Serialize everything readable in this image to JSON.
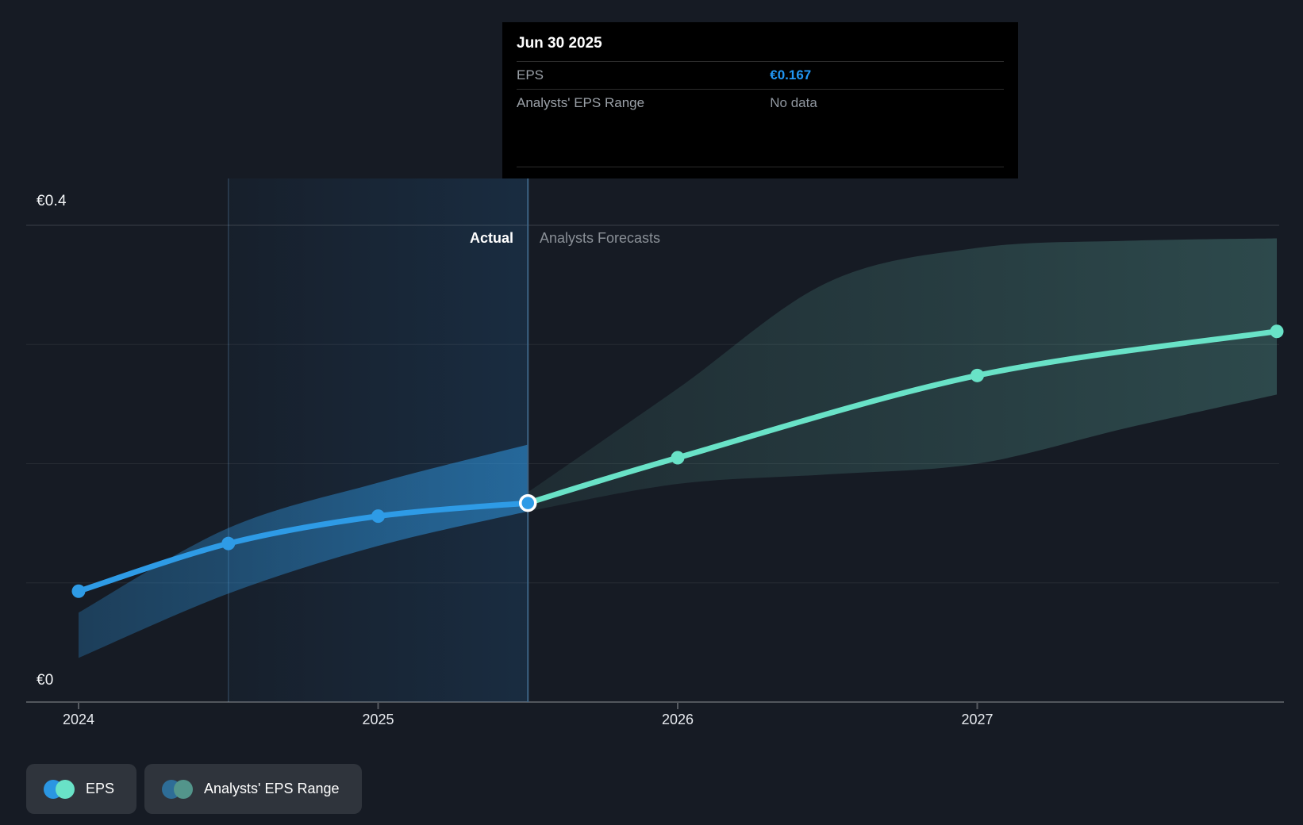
{
  "page": {
    "background": "#161b24"
  },
  "tooltip": {
    "title": "Jun 30 2025",
    "rows": [
      {
        "label": "EPS",
        "value": "€0.167",
        "value_color": "#2196f3"
      },
      {
        "label": "Analysts' EPS Range",
        "value": "No data",
        "value_color": "#9097a0"
      }
    ]
  },
  "annotations": {
    "actual_label": "Actual",
    "forecast_label": "Analysts Forecasts"
  },
  "axes": {
    "y_top_label": "€0.4",
    "y_bottom_label": "€0",
    "x_tick_labels": [
      "2024",
      "2025",
      "2026",
      "2027"
    ]
  },
  "legend": {
    "items": [
      {
        "id": "eps",
        "label": "EPS",
        "colors": [
          "#2b96e2",
          "#69e2c7"
        ]
      },
      {
        "id": "analysts-eps-range",
        "label": "Analysts' EPS Range",
        "colors": [
          "#2e6d97",
          "#53958b"
        ]
      }
    ]
  },
  "chart_data": {
    "type": "line",
    "x_domain": [
      2024.0,
      2028.05
    ],
    "y_domain": [
      0,
      0.4
    ],
    "y_gridlines": [
      0.1,
      0.2,
      0.3,
      0.4
    ],
    "x_ticks": [
      2024,
      2025,
      2026,
      2027
    ],
    "boundary_x": 2025.5,
    "boundary_date": "Jun 30 2025",
    "highlight_range": [
      2024.5,
      2025.5
    ],
    "series": [
      {
        "name": "EPS",
        "role": "actual",
        "color": "#2e9be6",
        "points": [
          {
            "x": 2024.0,
            "y": 0.093
          },
          {
            "x": 2024.5,
            "y": 0.133
          },
          {
            "x": 2025.0,
            "y": 0.156
          },
          {
            "x": 2025.5,
            "y": 0.167
          }
        ],
        "band": {
          "x": [
            2024.0,
            2024.5,
            2025.0,
            2025.5
          ],
          "top": [
            0.075,
            0.146,
            0.184,
            0.216
          ],
          "bottom": [
            0.037,
            0.091,
            0.131,
            0.16
          ]
        }
      },
      {
        "name": "EPS forecast",
        "role": "forecast",
        "color": "#69e2c7",
        "points": [
          {
            "x": 2025.5,
            "y": 0.167
          },
          {
            "x": 2026.0,
            "y": 0.205
          },
          {
            "x": 2027.0,
            "y": 0.274
          },
          {
            "x": 2028.0,
            "y": 0.311
          }
        ],
        "band": {
          "x": [
            2025.5,
            2026.0,
            2026.5,
            2027.0,
            2027.5,
            2028.0
          ],
          "top": [
            0.176,
            0.263,
            0.352,
            0.381,
            0.387,
            0.389
          ],
          "bottom": [
            0.16,
            0.183,
            0.191,
            0.2,
            0.23,
            0.258
          ]
        }
      }
    ]
  }
}
